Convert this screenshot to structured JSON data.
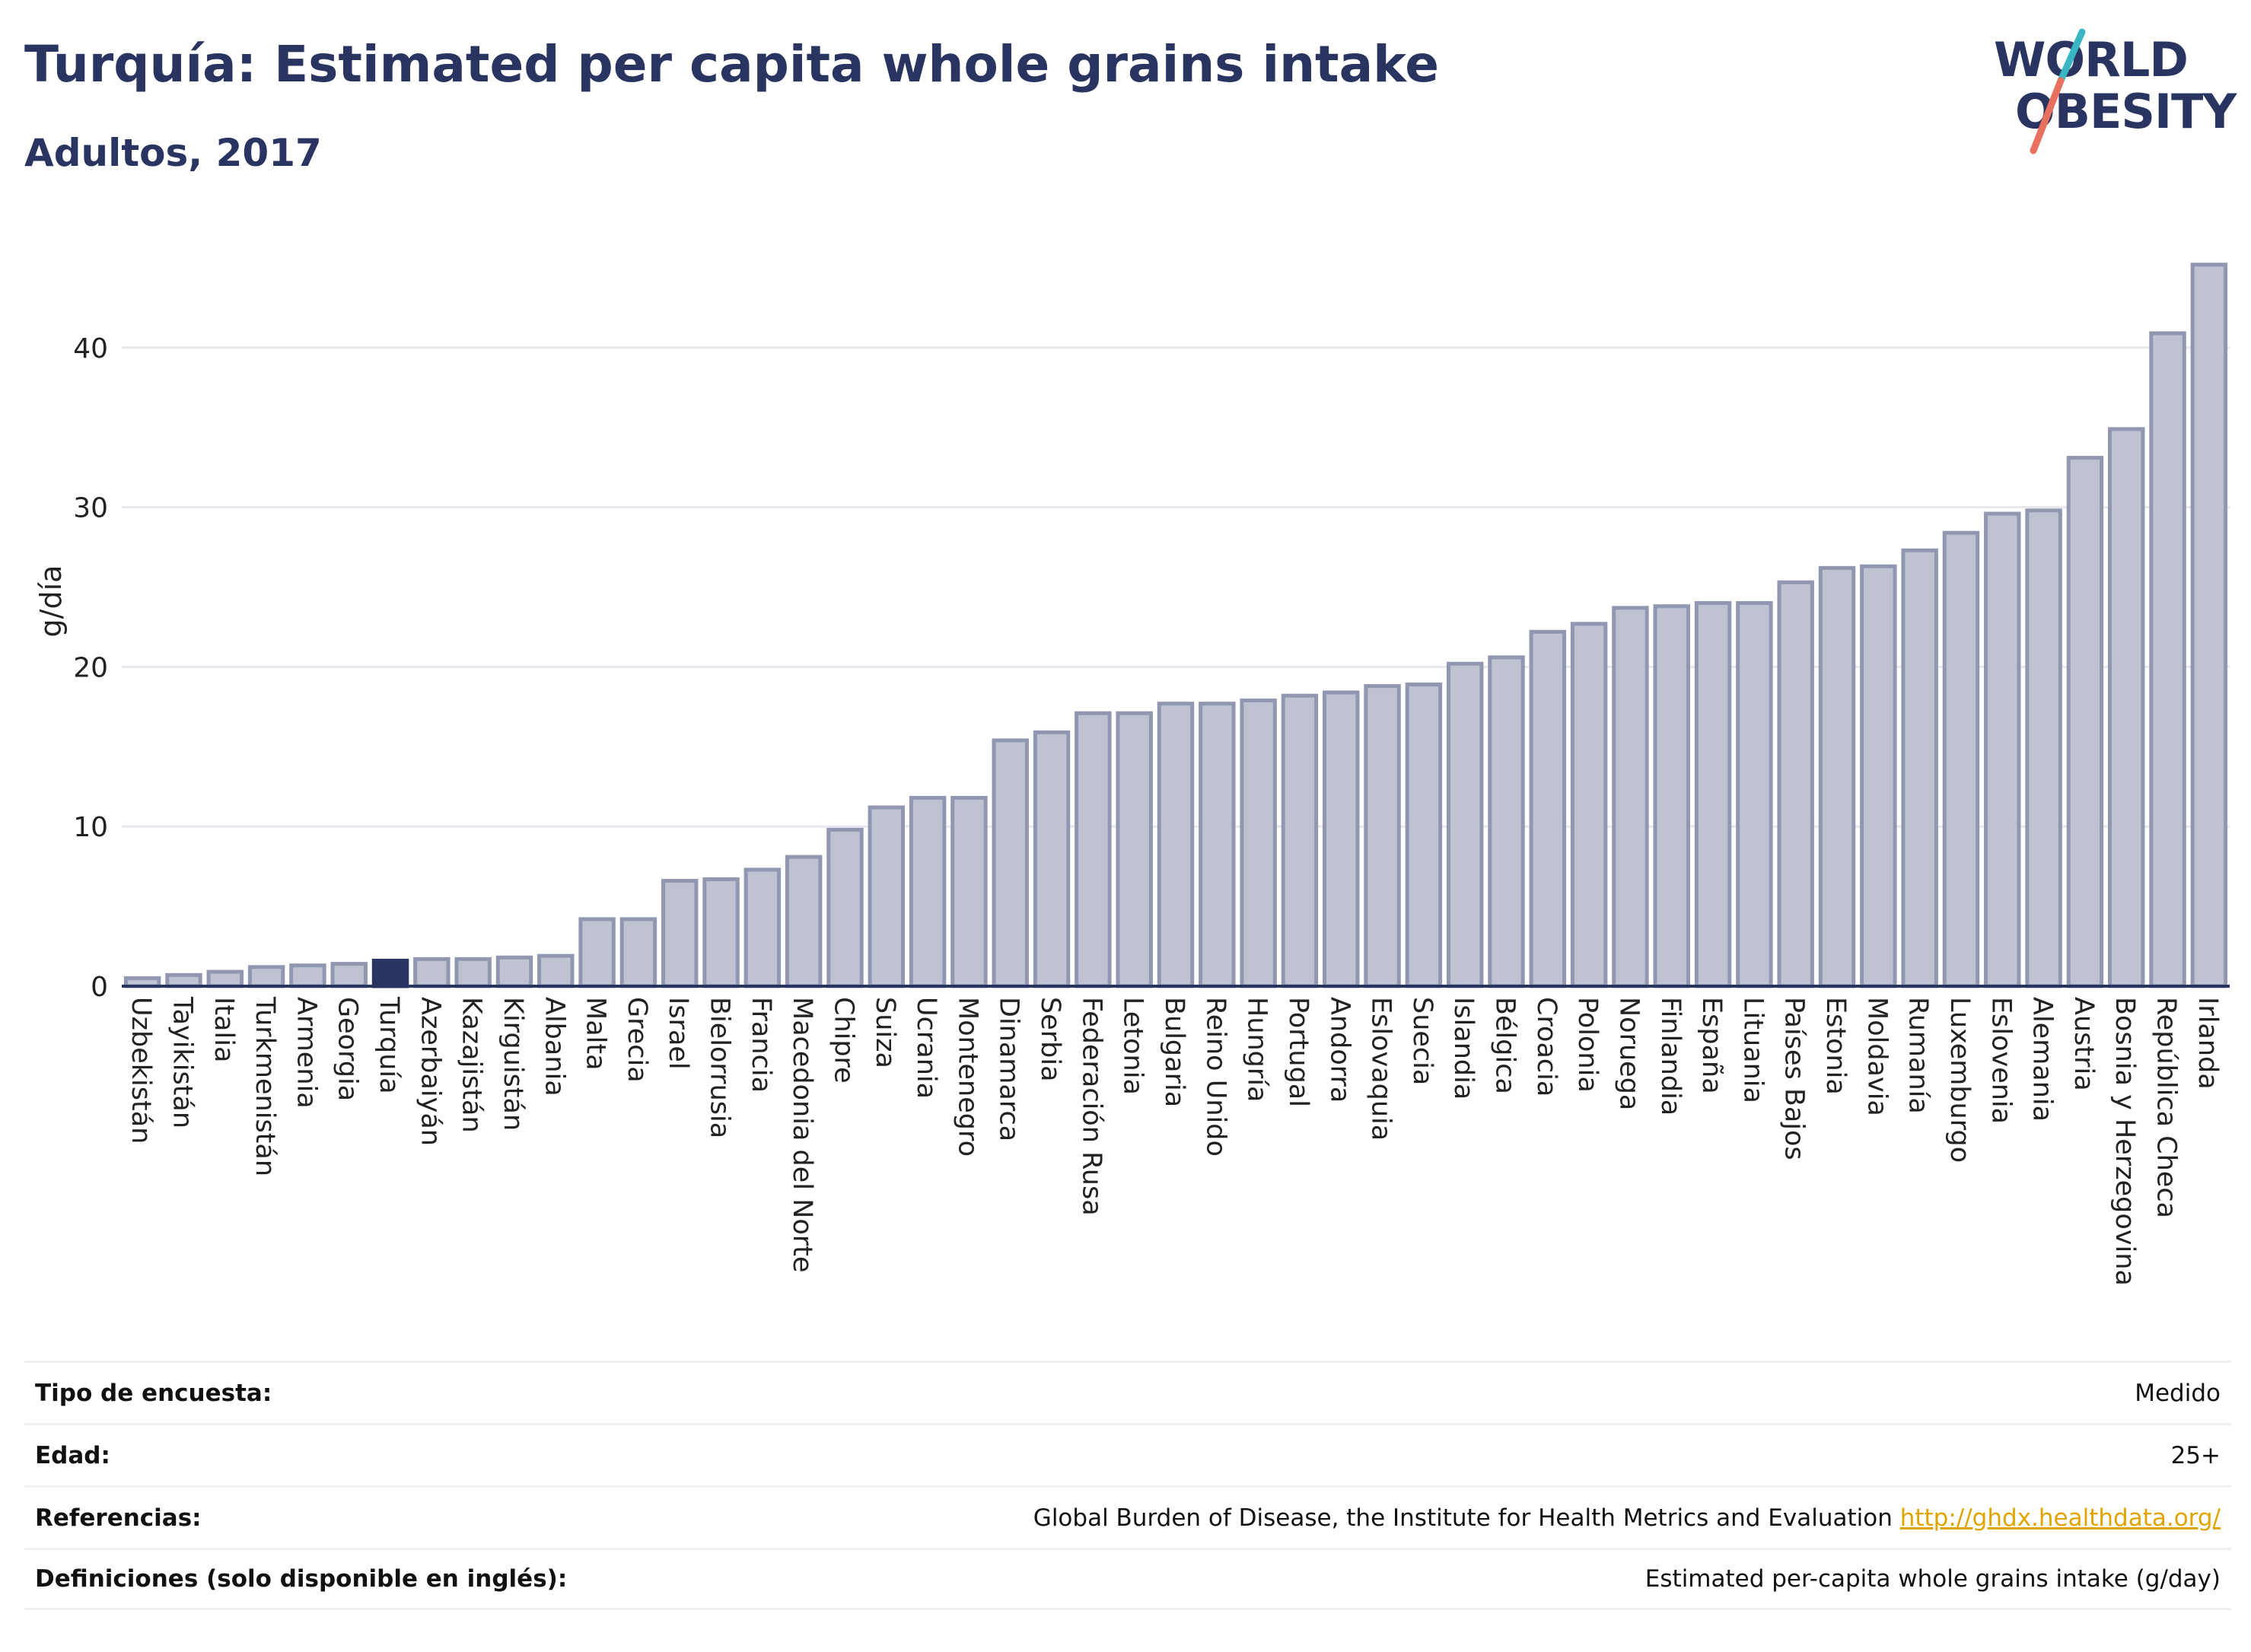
{
  "title": "Turquía: Estimated per capita whole grains intake",
  "subtitle": "Adultos, 2017",
  "logo": {
    "line1": "WORLD",
    "line2": "OBESITY"
  },
  "colors": {
    "highlight": "#2a3460",
    "bar_fill": "#bec2d1",
    "bar_stroke": "#9197b0",
    "title": "#2a3460",
    "logo_red": "#e8705e",
    "logo_teal": "#3ab5c3",
    "link": "#e0a400"
  },
  "chart_data": {
    "type": "bar",
    "ylabel": "g/día",
    "ylim": [
      0,
      47
    ],
    "yticks": [
      0,
      10,
      20,
      30,
      40
    ],
    "highlight": "Turquía",
    "categories": [
      "Uzbekistán",
      "Tayikistán",
      "Italia",
      "Turkmenistán",
      "Armenia",
      "Georgia",
      "Turquía",
      "Azerbaiyán",
      "Kazajistán",
      "Kirguistán",
      "Albania",
      "Malta",
      "Grecia",
      "Israel",
      "Bielorrusia",
      "Francia",
      "Macedonia del Norte",
      "Chipre",
      "Suiza",
      "Ucrania",
      "Montenegro",
      "Dinamarca",
      "Serbia",
      "Federación Rusa",
      "Letonia",
      "Bulgaria",
      "Reino Unido",
      "Hungría",
      "Portugal",
      "Andorra",
      "Eslovaquia",
      "Suecia",
      "Islandia",
      "Bélgica",
      "Croacia",
      "Polonia",
      "Noruega",
      "Finlandia",
      "España",
      "Lituania",
      "Países Bajos",
      "Estonia",
      "Moldavia",
      "Rumanía",
      "Luxemburgo",
      "Eslovenia",
      "Alemania",
      "Austria",
      "Bosnia y Herzegovina",
      "República Checa",
      "Irlanda"
    ],
    "values": [
      0.5,
      0.7,
      0.9,
      1.2,
      1.3,
      1.4,
      1.6,
      1.7,
      1.7,
      1.8,
      1.9,
      4.2,
      4.2,
      6.6,
      6.7,
      7.3,
      8.1,
      9.8,
      11.2,
      11.8,
      11.8,
      15.4,
      15.9,
      17.1,
      17.1,
      17.7,
      17.7,
      17.9,
      18.2,
      18.4,
      18.8,
      18.9,
      20.2,
      20.6,
      22.2,
      22.7,
      23.7,
      23.8,
      24.0,
      24.0,
      25.3,
      26.2,
      26.3,
      27.3,
      28.4,
      29.6,
      29.8,
      33.1,
      34.9,
      40.9,
      45.2
    ]
  },
  "info": {
    "survey_label": "Tipo de encuesta:",
    "survey_value": "Medido",
    "age_label": "Edad:",
    "age_value": "25+",
    "ref_label": "Referencias:",
    "ref_text": "Global Burden of Disease, the Institute for Health Metrics and Evaluation",
    "ref_link": "http://ghdx.healthdata.org/",
    "def_label": "Definiciones (solo disponible en inglés):",
    "def_value": "Estimated per-capita whole grains intake (g/day)"
  }
}
